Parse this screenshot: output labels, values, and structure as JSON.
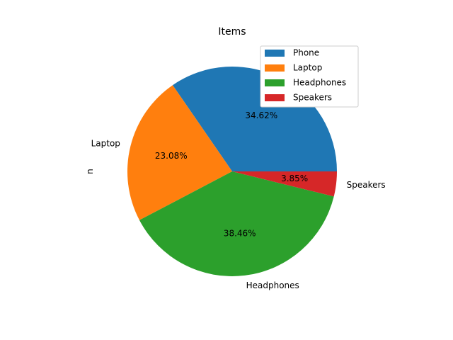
{
  "chart_data": {
    "type": "pie",
    "title": "Items",
    "ylabel": "n",
    "categories": [
      "Phone",
      "Laptop",
      "Headphones",
      "Speakers"
    ],
    "values": [
      9,
      6,
      10,
      1
    ],
    "percent_labels": [
      "34.62%",
      "23.08%",
      "38.46%",
      "3.85%"
    ],
    "colors": [
      "#1f77b4",
      "#ff7f0e",
      "#2ca02c",
      "#d62728"
    ],
    "start_angle_deg": 0,
    "direction": "counterclockwise",
    "legend": {
      "position": "upper-right",
      "entries": [
        "Phone",
        "Laptop",
        "Headphones",
        "Speakers"
      ]
    }
  }
}
